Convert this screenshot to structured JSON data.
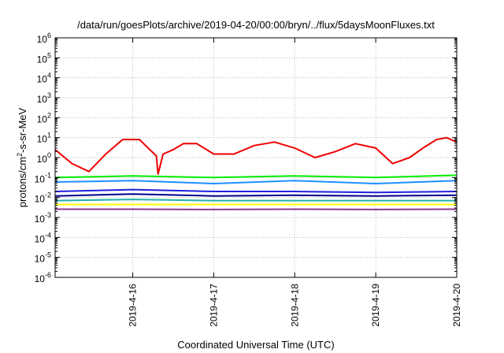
{
  "chart_data": {
    "type": "line",
    "title": "/data/run/goesPlots/archive/2019-04-20/00:00/bryn/../flux/5daysMoonFluxes.txt",
    "xlabel": "Coordinated Universal Time (UTC)",
    "ylabel_prefix": "protons/cm",
    "ylabel_sup": "2",
    "ylabel_suffix": "-s-sr-MeV",
    "y_scale": "log",
    "ylim": [
      1e-06,
      1000000.0
    ],
    "y_ticks": [
      {
        "base": "10",
        "exp": "-6"
      },
      {
        "base": "10",
        "exp": "-5"
      },
      {
        "base": "10",
        "exp": "-4"
      },
      {
        "base": "10",
        "exp": "-3"
      },
      {
        "base": "10",
        "exp": "-2"
      },
      {
        "base": "10",
        "exp": "-1"
      },
      {
        "base": "10",
        "exp": "0"
      },
      {
        "base": "10",
        "exp": "1"
      },
      {
        "base": "10",
        "exp": "2"
      },
      {
        "base": "10",
        "exp": "3"
      },
      {
        "base": "10",
        "exp": "4"
      },
      {
        "base": "10",
        "exp": "5"
      },
      {
        "base": "10",
        "exp": "6"
      }
    ],
    "xlim": [
      "2019-04-15 01:00",
      "2019-04-20 00:00"
    ],
    "x_ticks": [
      "2019-4-16",
      "2019-4-17",
      "2019-4-18",
      "2019-4-19",
      "2019-4-20"
    ],
    "grid": true,
    "series": [
      {
        "color": "#ee0000",
        "x": [
          "2019-04-15 01:00",
          "2019-04-15 06:00",
          "2019-04-15 11:00",
          "2019-04-15 16:00",
          "2019-04-15 21:00",
          "2019-04-16 02:00",
          "2019-04-16 07:00",
          "2019-04-16 07:30",
          "2019-04-16 09:00",
          "2019-04-16 12:00",
          "2019-04-16 15:00",
          "2019-04-16 19:00",
          "2019-04-17 00:00",
          "2019-04-17 06:00",
          "2019-04-17 12:00",
          "2019-04-17 18:00",
          "2019-04-18 00:00",
          "2019-04-18 06:00",
          "2019-04-18 12:00",
          "2019-04-18 18:00",
          "2019-04-19 00:00",
          "2019-04-19 05:00",
          "2019-04-19 10:00",
          "2019-04-19 14:00",
          "2019-04-19 18:00",
          "2019-04-19 21:00",
          "2019-04-20 00:00"
        ],
        "values": [
          2.5,
          0.5,
          0.2,
          1.5,
          8,
          8,
          1.2,
          0.15,
          1.5,
          2.5,
          5,
          5,
          1.5,
          1.5,
          4,
          6,
          3,
          1,
          2,
          5,
          3,
          0.5,
          1,
          3,
          8,
          10,
          6
        ]
      },
      {
        "color": "#00ee00",
        "x": [
          "2019-04-15 01:00",
          "2019-04-16 00:00",
          "2019-04-17 00:00",
          "2019-04-18 00:00",
          "2019-04-19 00:00",
          "2019-04-20 00:00"
        ],
        "values": [
          0.1,
          0.12,
          0.1,
          0.12,
          0.1,
          0.13
        ]
      },
      {
        "color": "#1e90ff",
        "x": [
          "2019-04-15 01:00",
          "2019-04-16 00:00",
          "2019-04-17 00:00",
          "2019-04-18 00:00",
          "2019-04-19 00:00",
          "2019-04-20 00:00"
        ],
        "values": [
          0.06,
          0.07,
          0.05,
          0.07,
          0.05,
          0.07
        ]
      },
      {
        "color": "#2020e0",
        "x": [
          "2019-04-15 01:00",
          "2019-04-16 00:00",
          "2019-04-17 00:00",
          "2019-04-18 00:00",
          "2019-04-19 00:00",
          "2019-04-20 00:00"
        ],
        "values": [
          0.02,
          0.025,
          0.02,
          0.02,
          0.018,
          0.02
        ]
      },
      {
        "color": "#00008b",
        "x": [
          "2019-04-15 01:00",
          "2019-04-16 00:00",
          "2019-04-17 00:00",
          "2019-04-18 00:00",
          "2019-04-19 00:00",
          "2019-04-20 00:00"
        ],
        "values": [
          0.012,
          0.015,
          0.012,
          0.013,
          0.012,
          0.013
        ]
      },
      {
        "color": "#20b2aa",
        "x": [
          "2019-04-15 01:00",
          "2019-04-16 00:00",
          "2019-04-17 00:00",
          "2019-04-18 00:00",
          "2019-04-19 00:00",
          "2019-04-20 00:00"
        ],
        "values": [
          0.007,
          0.008,
          0.007,
          0.007,
          0.007,
          0.007
        ]
      },
      {
        "color": "#ffff00",
        "x": [
          "2019-04-15 01:00",
          "2019-04-20 00:00"
        ],
        "values": [
          0.0045,
          0.0045
        ]
      },
      {
        "color": "#8b3a8b",
        "x": [
          "2019-04-15 01:00",
          "2019-04-16 00:00",
          "2019-04-17 00:00",
          "2019-04-18 00:00",
          "2019-04-19 00:00",
          "2019-04-20 00:00"
        ],
        "values": [
          0.0026,
          0.0026,
          0.0025,
          0.0026,
          0.0025,
          0.0026
        ]
      }
    ]
  }
}
